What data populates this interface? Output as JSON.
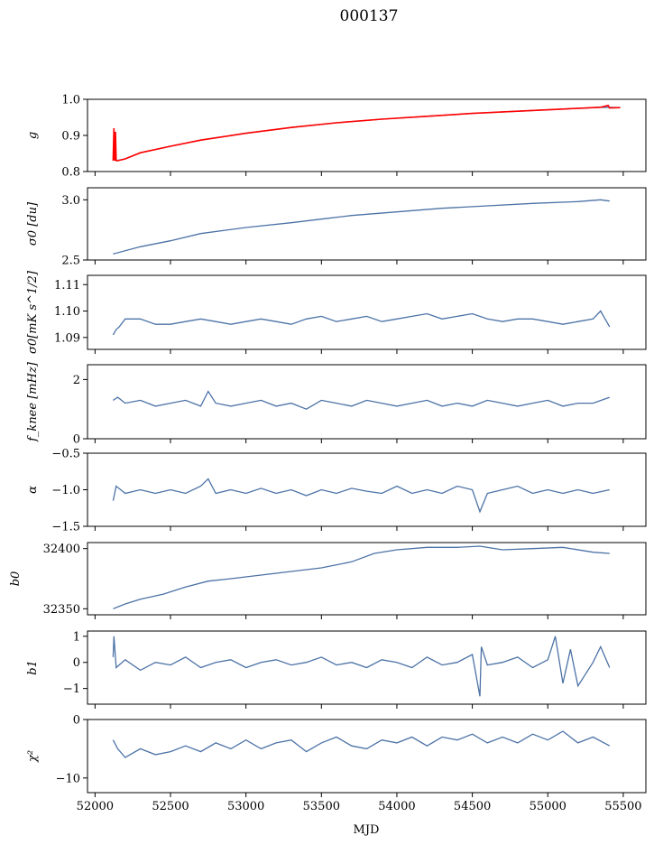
{
  "figure_title": "000137",
  "x_axis_label": "MJD",
  "colors": {
    "series": "#4c72a6",
    "fit": "#ff0000",
    "frame": "#000000"
  },
  "chart_data": [
    {
      "type": "line",
      "ylabel": "g",
      "xlim": [
        51950,
        55650
      ],
      "ylim": [
        0.8,
        1.0
      ],
      "xticks": [
        52000,
        52500,
        53000,
        53500,
        54000,
        54500,
        55000,
        55500
      ],
      "yticks": [
        0.8,
        0.9,
        1.0
      ],
      "ytick_labels": [
        "0.8",
        "0.9",
        "1.0"
      ],
      "series": [
        {
          "color": "#4c72a6",
          "x": [
            52120,
            52150,
            52200,
            52300,
            52500,
            52700,
            53000,
            53300,
            53600,
            53900,
            54200,
            54500,
            54800,
            55100,
            55350,
            55480
          ],
          "y": [
            0.833,
            0.831,
            0.835,
            0.852,
            0.87,
            0.887,
            0.906,
            0.922,
            0.935,
            0.945,
            0.953,
            0.961,
            0.967,
            0.973,
            0.978,
            0.977
          ]
        },
        {
          "color": "#ff0000",
          "x": [
            52120,
            52125,
            52130,
            52135,
            52140,
            52150,
            52200,
            52300,
            52500,
            52700,
            53000,
            53300,
            53600,
            53900,
            54200,
            54500,
            54800,
            55100,
            55350,
            55400,
            55410,
            55480
          ],
          "y": [
            0.83,
            0.92,
            0.83,
            0.91,
            0.83,
            0.83,
            0.835,
            0.852,
            0.87,
            0.887,
            0.906,
            0.922,
            0.935,
            0.945,
            0.953,
            0.961,
            0.967,
            0.973,
            0.978,
            0.983,
            0.976,
            0.977
          ]
        }
      ]
    },
    {
      "type": "line",
      "ylabel": "σ0 [du]",
      "xlim": [
        51950,
        55650
      ],
      "ylim": [
        2.5,
        3.1
      ],
      "xticks": [
        52000,
        52500,
        53000,
        53500,
        54000,
        54500,
        55000,
        55500
      ],
      "yticks": [
        2.5,
        3.0
      ],
      "ytick_labels": [
        "2.5",
        "3.0"
      ],
      "series": [
        {
          "color": "#4c72a6",
          "x": [
            52120,
            52300,
            52500,
            52700,
            53000,
            53300,
            53500,
            53700,
            54000,
            54300,
            54600,
            54900,
            55200,
            55350,
            55410
          ],
          "y": [
            2.55,
            2.61,
            2.66,
            2.72,
            2.77,
            2.81,
            2.84,
            2.87,
            2.9,
            2.93,
            2.95,
            2.97,
            2.985,
            3.0,
            2.99
          ]
        }
      ]
    },
    {
      "type": "line",
      "ylabel": "σ0[mK s^1/2]",
      "xlim": [
        51950,
        55650
      ],
      "ylim": [
        1.0855,
        1.1135
      ],
      "xticks": [
        52000,
        52500,
        53000,
        53500,
        54000,
        54500,
        55000,
        55500
      ],
      "yticks": [
        1.09,
        1.1,
        1.11
      ],
      "ytick_labels": [
        "1.09",
        "1.10",
        "1.11"
      ],
      "series": [
        {
          "color": "#4c72a6",
          "x": [
            52120,
            52140,
            52160,
            52200,
            52300,
            52400,
            52500,
            52600,
            52700,
            52800,
            52900,
            53000,
            53100,
            53200,
            53300,
            53400,
            53500,
            53600,
            53700,
            53800,
            53900,
            54000,
            54100,
            54200,
            54300,
            54400,
            54500,
            54600,
            54700,
            54800,
            54900,
            55000,
            55100,
            55200,
            55300,
            55350,
            55380,
            55410
          ],
          "y": [
            1.091,
            1.093,
            1.094,
            1.097,
            1.097,
            1.095,
            1.095,
            1.096,
            1.097,
            1.096,
            1.095,
            1.096,
            1.097,
            1.096,
            1.095,
            1.097,
            1.098,
            1.096,
            1.097,
            1.098,
            1.096,
            1.097,
            1.098,
            1.099,
            1.097,
            1.098,
            1.099,
            1.097,
            1.096,
            1.097,
            1.097,
            1.096,
            1.095,
            1.096,
            1.097,
            1.1,
            1.097,
            1.094
          ]
        }
      ]
    },
    {
      "type": "line",
      "ylabel": "f_knee [mHz]",
      "xlim": [
        51950,
        55650
      ],
      "ylim": [
        0,
        2.5
      ],
      "xticks": [
        52000,
        52500,
        53000,
        53500,
        54000,
        54500,
        55000,
        55500
      ],
      "yticks": [
        0,
        2
      ],
      "ytick_labels": [
        "0",
        "2"
      ],
      "series": [
        {
          "color": "#4c72a6",
          "x": [
            52120,
            52150,
            52200,
            52300,
            52400,
            52500,
            52600,
            52700,
            52750,
            52800,
            52900,
            53000,
            53100,
            53200,
            53300,
            53400,
            53500,
            53600,
            53700,
            53800,
            53900,
            54000,
            54100,
            54200,
            54300,
            54400,
            54500,
            54600,
            54700,
            54800,
            54900,
            55000,
            55100,
            55200,
            55300,
            55410
          ],
          "y": [
            1.3,
            1.4,
            1.2,
            1.3,
            1.1,
            1.2,
            1.3,
            1.1,
            1.6,
            1.2,
            1.1,
            1.2,
            1.3,
            1.1,
            1.2,
            1.0,
            1.3,
            1.2,
            1.1,
            1.3,
            1.2,
            1.1,
            1.2,
            1.3,
            1.1,
            1.2,
            1.1,
            1.3,
            1.2,
            1.1,
            1.2,
            1.3,
            1.1,
            1.2,
            1.2,
            1.4
          ]
        }
      ]
    },
    {
      "type": "line",
      "ylabel": "α",
      "xlim": [
        51950,
        55650
      ],
      "ylim": [
        -1.5,
        -0.5
      ],
      "xticks": [
        52000,
        52500,
        53000,
        53500,
        54000,
        54500,
        55000,
        55500
      ],
      "yticks": [
        -1.5,
        -1.0,
        -0.5
      ],
      "ytick_labels": [
        "−1.5",
        "−1.0",
        "−0.5"
      ],
      "series": [
        {
          "color": "#4c72a6",
          "x": [
            52120,
            52140,
            52200,
            52300,
            52400,
            52500,
            52600,
            52700,
            52750,
            52800,
            52900,
            53000,
            53100,
            53200,
            53300,
            53400,
            53500,
            53600,
            53700,
            53800,
            53900,
            54000,
            54100,
            54200,
            54300,
            54400,
            54500,
            54550,
            54600,
            54700,
            54800,
            54900,
            55000,
            55100,
            55200,
            55300,
            55410
          ],
          "y": [
            -1.15,
            -0.95,
            -1.05,
            -1.0,
            -1.05,
            -1.0,
            -1.05,
            -0.95,
            -0.85,
            -1.05,
            -1.0,
            -1.05,
            -0.98,
            -1.05,
            -1.0,
            -1.08,
            -1.0,
            -1.05,
            -0.98,
            -1.02,
            -1.05,
            -0.95,
            -1.05,
            -1.0,
            -1.05,
            -0.95,
            -1.0,
            -1.3,
            -1.05,
            -1.0,
            -0.95,
            -1.05,
            -1.0,
            -1.05,
            -1.0,
            -1.05,
            -1.0
          ]
        }
      ]
    },
    {
      "type": "line",
      "ylabel": "b0",
      "xlim": [
        51950,
        55650
      ],
      "ylim": [
        32345,
        32405
      ],
      "xticks": [
        52000,
        52500,
        53000,
        53500,
        54000,
        54500,
        55000,
        55500
      ],
      "yticks": [
        32350,
        32400
      ],
      "ytick_labels": [
        "32350",
        "32400"
      ],
      "series": [
        {
          "color": "#4c72a6",
          "x": [
            52120,
            52200,
            52300,
            52450,
            52600,
            52750,
            52900,
            53100,
            53300,
            53500,
            53700,
            53850,
            54000,
            54200,
            54400,
            54550,
            54700,
            54900,
            55100,
            55300,
            55410
          ],
          "y": [
            32350,
            32354,
            32358,
            32362,
            32368,
            32373,
            32375,
            32378,
            32381,
            32384,
            32389,
            32396,
            32399,
            32401,
            32401,
            32402,
            32399,
            32400,
            32401,
            32397,
            32396
          ]
        }
      ]
    },
    {
      "type": "line",
      "ylabel": "b1",
      "xlim": [
        51950,
        55650
      ],
      "ylim": [
        -1.6,
        1.2
      ],
      "xticks": [
        52000,
        52500,
        53000,
        53500,
        54000,
        54500,
        55000,
        55500
      ],
      "yticks": [
        -1,
        0,
        1
      ],
      "ytick_labels": [
        "−1",
        "0",
        "1"
      ],
      "series": [
        {
          "color": "#4c72a6",
          "x": [
            52120,
            52125,
            52140,
            52200,
            52300,
            52400,
            52500,
            52600,
            52700,
            52800,
            52900,
            53000,
            53100,
            53200,
            53300,
            53400,
            53500,
            53600,
            53700,
            53800,
            53900,
            54000,
            54100,
            54200,
            54300,
            54400,
            54500,
            54550,
            54560,
            54600,
            54700,
            54800,
            54900,
            55000,
            55050,
            55100,
            55150,
            55200,
            55300,
            55350,
            55410
          ],
          "y": [
            0.2,
            1.0,
            -0.2,
            0.1,
            -0.3,
            0.0,
            -0.1,
            0.2,
            -0.2,
            0.0,
            0.1,
            -0.2,
            0.0,
            0.1,
            -0.1,
            0.0,
            0.2,
            -0.1,
            0.0,
            -0.2,
            0.1,
            0.0,
            -0.2,
            0.2,
            -0.1,
            0.0,
            0.3,
            -1.3,
            0.6,
            -0.1,
            0.0,
            0.2,
            -0.2,
            0.1,
            1.0,
            -0.8,
            0.5,
            -0.9,
            0.0,
            0.6,
            -0.2
          ]
        }
      ]
    },
    {
      "type": "line",
      "ylabel": "χ²",
      "xlim": [
        51950,
        55650
      ],
      "ylim": [
        -12.5,
        0
      ],
      "xticks": [
        52000,
        52500,
        53000,
        53500,
        54000,
        54500,
        55000,
        55500
      ],
      "yticks": [
        -10,
        0
      ],
      "ytick_labels": [
        "−10",
        "0"
      ],
      "series": [
        {
          "color": "#4c72a6",
          "x": [
            52120,
            52150,
            52200,
            52300,
            52400,
            52500,
            52600,
            52700,
            52800,
            52900,
            53000,
            53100,
            53200,
            53300,
            53400,
            53500,
            53600,
            53700,
            53800,
            53900,
            54000,
            54100,
            54200,
            54300,
            54400,
            54500,
            54600,
            54700,
            54800,
            54900,
            55000,
            55100,
            55200,
            55300,
            55410
          ],
          "y": [
            -3.5,
            -5.0,
            -6.5,
            -5.0,
            -6.0,
            -5.5,
            -4.5,
            -5.5,
            -4.0,
            -5.0,
            -3.5,
            -5.0,
            -4.0,
            -3.5,
            -5.5,
            -4.0,
            -3.0,
            -4.5,
            -5.0,
            -3.5,
            -4.0,
            -3.0,
            -4.5,
            -3.0,
            -3.5,
            -2.5,
            -4.0,
            -3.0,
            -4.0,
            -2.5,
            -3.5,
            -2.0,
            -4.0,
            -3.0,
            -4.5
          ]
        }
      ]
    }
  ]
}
